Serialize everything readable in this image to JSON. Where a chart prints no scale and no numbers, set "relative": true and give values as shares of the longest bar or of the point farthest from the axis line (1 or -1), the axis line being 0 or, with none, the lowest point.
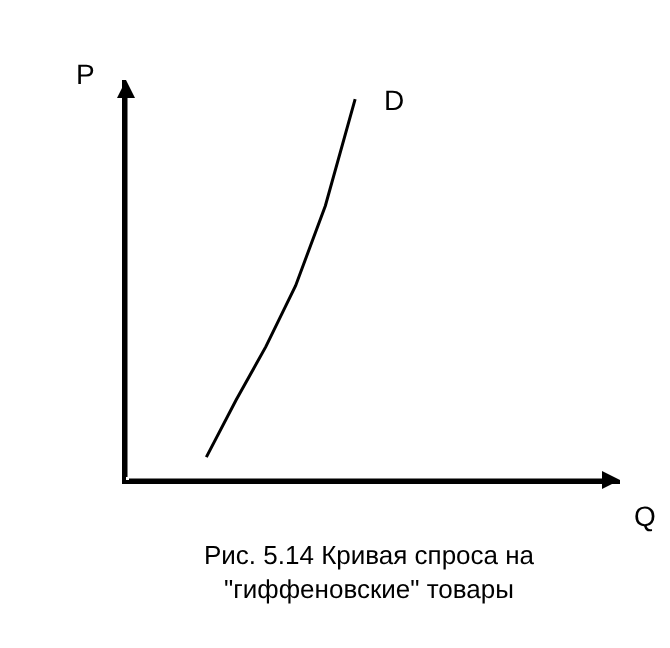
{
  "chart_data": {
    "type": "line",
    "relative": true,
    "categories": [
      null,
      null,
      null,
      null,
      null,
      null
    ],
    "series": [
      {
        "name": "D",
        "color": "#000000",
        "values": [
          0.06,
          0.21,
          0.35,
          0.51,
          0.72,
          1
        ]
      }
    ],
    "annotations": [
      "P",
      "Q",
      "Рис. 5.14 Кривая спроса на\n\"гиффеновские\" товары"
    ],
    "legend": false,
    "marker": "none",
    "line_style": "solid"
  }
}
